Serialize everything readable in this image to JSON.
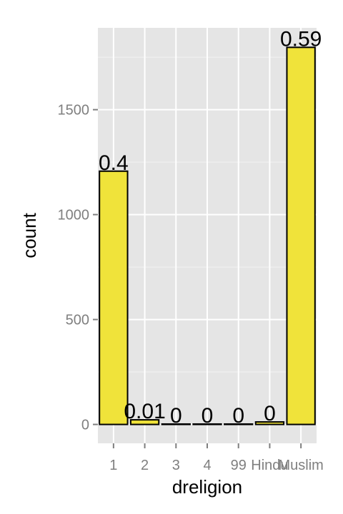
{
  "chart_data": {
    "type": "bar",
    "xlabel": "dreligion",
    "ylabel": "count",
    "categories": [
      "1",
      "2",
      "3",
      "4",
      "99",
      "Hindu",
      "Muslim"
    ],
    "values": [
      1207,
      22,
      2,
      2,
      2,
      12,
      1797
    ],
    "bar_labels": [
      "0.4",
      "0.01",
      "0",
      "0",
      "0",
      "0",
      "0.59"
    ],
    "yticks": [
      0,
      500,
      1000,
      1500
    ],
    "ylim": [
      -90,
      1890
    ],
    "grid": true,
    "legend": "none",
    "colors": {
      "bar_fill": "#f0e33a",
      "bar_stroke": "#000000",
      "panel_bg": "#e5e5e5",
      "grid_major": "#ffffff",
      "grid_minor": "#f2f2f2",
      "tick_text": "#7f7f7f"
    }
  }
}
